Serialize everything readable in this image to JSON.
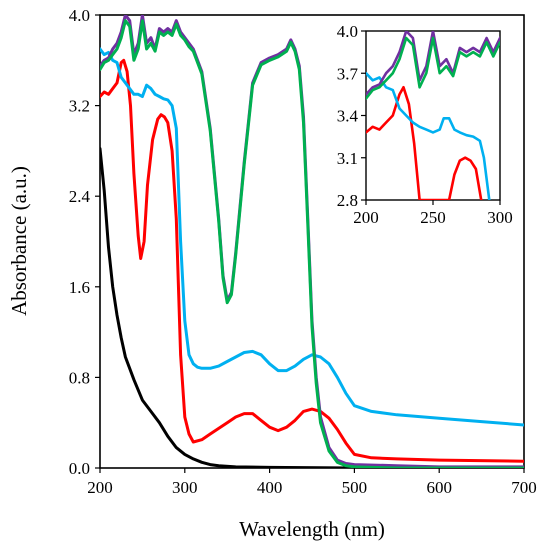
{
  "chart_data": [
    {
      "type": "line",
      "title": "",
      "xlabel": "Wavelength (nm)",
      "ylabel": "Absorbance (a.u.)",
      "xlim": [
        200,
        700
      ],
      "ylim": [
        0,
        4
      ],
      "xticks": [
        200,
        300,
        400,
        500,
        600,
        700
      ],
      "yticks": [
        0.0,
        0.8,
        1.6,
        2.4,
        3.2,
        4.0
      ],
      "xtick_labels": [
        "200",
        "300",
        "400",
        "500",
        "600",
        "700"
      ],
      "ytick_labels": [
        "0.0",
        "0.8",
        "1.6",
        "2.4",
        "3.2",
        "4.0"
      ],
      "grid": false,
      "legend": "none",
      "series": [
        {
          "color": "#000000",
          "x": [
            200,
            205,
            210,
            215,
            220,
            225,
            230,
            240,
            250,
            260,
            270,
            280,
            290,
            300,
            310,
            320,
            330,
            340,
            360,
            400,
            500,
            600,
            700
          ],
          "y": [
            2.82,
            2.45,
            1.95,
            1.6,
            1.35,
            1.15,
            0.98,
            0.78,
            0.6,
            0.5,
            0.4,
            0.28,
            0.18,
            0.12,
            0.08,
            0.05,
            0.03,
            0.02,
            0.01,
            0.005,
            0.0,
            0.0,
            0.0
          ]
        },
        {
          "color": "#ff0000",
          "x": [
            200,
            205,
            210,
            215,
            220,
            225,
            228,
            232,
            236,
            240,
            245,
            248,
            252,
            256,
            262,
            268,
            272,
            276,
            280,
            285,
            290,
            295,
            300,
            305,
            310,
            320,
            330,
            340,
            350,
            360,
            370,
            380,
            390,
            400,
            410,
            420,
            430,
            440,
            450,
            460,
            470,
            480,
            490,
            500,
            520,
            550,
            600,
            700
          ],
          "y": [
            3.28,
            3.32,
            3.3,
            3.35,
            3.4,
            3.58,
            3.6,
            3.5,
            3.2,
            2.6,
            2.05,
            1.85,
            2.0,
            2.5,
            2.9,
            3.08,
            3.12,
            3.1,
            3.05,
            2.8,
            2.2,
            1.0,
            0.45,
            0.3,
            0.23,
            0.25,
            0.3,
            0.35,
            0.4,
            0.45,
            0.48,
            0.48,
            0.42,
            0.36,
            0.33,
            0.36,
            0.42,
            0.5,
            0.52,
            0.5,
            0.44,
            0.34,
            0.22,
            0.12,
            0.09,
            0.08,
            0.07,
            0.06
          ]
        },
        {
          "color": "#00b0f0",
          "x": [
            200,
            205,
            210,
            215,
            220,
            225,
            230,
            235,
            240,
            245,
            250,
            255,
            260,
            265,
            270,
            275,
            280,
            285,
            290,
            295,
            300,
            305,
            310,
            315,
            320,
            330,
            340,
            350,
            360,
            370,
            380,
            390,
            400,
            410,
            420,
            430,
            440,
            450,
            460,
            470,
            480,
            490,
            500,
            520,
            550,
            600,
            650,
            700
          ],
          "y": [
            3.7,
            3.65,
            3.67,
            3.6,
            3.58,
            3.45,
            3.4,
            3.35,
            3.3,
            3.3,
            3.28,
            3.38,
            3.35,
            3.3,
            3.28,
            3.26,
            3.25,
            3.2,
            3.0,
            2.0,
            1.3,
            1.0,
            0.92,
            0.89,
            0.88,
            0.88,
            0.9,
            0.94,
            0.98,
            1.02,
            1.03,
            1.0,
            0.92,
            0.86,
            0.86,
            0.9,
            0.96,
            1.0,
            0.98,
            0.92,
            0.8,
            0.66,
            0.55,
            0.5,
            0.47,
            0.44,
            0.41,
            0.38
          ]
        },
        {
          "color": "#7030a0",
          "x": [
            200,
            205,
            210,
            215,
            220,
            225,
            230,
            235,
            240,
            245,
            250,
            255,
            260,
            265,
            270,
            275,
            280,
            285,
            290,
            295,
            300,
            305,
            310,
            320,
            330,
            340,
            345,
            350,
            355,
            360,
            370,
            380,
            390,
            400,
            410,
            420,
            425,
            430,
            435,
            440,
            445,
            450,
            455,
            460,
            470,
            480,
            490,
            500,
            550,
            600,
            700
          ],
          "y": [
            3.55,
            3.6,
            3.62,
            3.7,
            3.75,
            3.85,
            4.0,
            3.95,
            3.65,
            3.75,
            4.0,
            3.75,
            3.8,
            3.7,
            3.88,
            3.85,
            3.88,
            3.85,
            3.95,
            3.85,
            3.8,
            3.75,
            3.7,
            3.5,
            3.0,
            2.2,
            1.7,
            1.48,
            1.55,
            1.9,
            2.7,
            3.4,
            3.58,
            3.62,
            3.65,
            3.7,
            3.78,
            3.7,
            3.55,
            3.1,
            2.2,
            1.3,
            0.8,
            0.45,
            0.18,
            0.07,
            0.04,
            0.03,
            0.02,
            0.01,
            0.01
          ]
        },
        {
          "color": "#00b050",
          "x": [
            200,
            205,
            210,
            215,
            220,
            225,
            230,
            235,
            240,
            245,
            250,
            255,
            260,
            265,
            270,
            275,
            280,
            285,
            290,
            295,
            300,
            305,
            310,
            320,
            330,
            340,
            345,
            350,
            355,
            360,
            370,
            380,
            390,
            400,
            410,
            420,
            425,
            430,
            435,
            440,
            445,
            450,
            455,
            460,
            470,
            480,
            490,
            500,
            550,
            600,
            700
          ],
          "y": [
            3.52,
            3.58,
            3.6,
            3.65,
            3.7,
            3.8,
            3.95,
            3.9,
            3.6,
            3.7,
            3.95,
            3.7,
            3.75,
            3.68,
            3.85,
            3.82,
            3.85,
            3.82,
            3.92,
            3.82,
            3.78,
            3.72,
            3.68,
            3.48,
            2.98,
            2.18,
            1.68,
            1.46,
            1.53,
            1.88,
            2.68,
            3.38,
            3.56,
            3.6,
            3.63,
            3.68,
            3.76,
            3.68,
            3.52,
            3.05,
            2.15,
            1.25,
            0.75,
            0.4,
            0.15,
            0.05,
            0.02,
            0.01,
            0.0,
            0.0,
            0.0
          ]
        }
      ]
    },
    {
      "type": "line",
      "title": "",
      "xlabel": "",
      "ylabel": "",
      "xlim": [
        200,
        300
      ],
      "ylim": [
        2.8,
        4.0
      ],
      "xticks": [
        200,
        250,
        300
      ],
      "yticks": [
        2.8,
        3.1,
        3.4,
        3.7,
        4.0
      ],
      "xtick_labels": [
        "200",
        "250",
        "300"
      ],
      "ytick_labels": [
        "2.8",
        "3.1",
        "3.4",
        "3.7",
        "4.0"
      ],
      "grid": false,
      "legend": "none",
      "series": [
        {
          "color": "#ff0000",
          "x": [
            200,
            205,
            210,
            215,
            220,
            225,
            228,
            232,
            236,
            240,
            262,
            266,
            270,
            274,
            278,
            282,
            286
          ],
          "y": [
            3.28,
            3.32,
            3.3,
            3.35,
            3.4,
            3.55,
            3.6,
            3.48,
            3.2,
            2.8,
            2.8,
            2.98,
            3.08,
            3.1,
            3.08,
            3.02,
            2.8
          ]
        },
        {
          "color": "#00b0f0",
          "x": [
            200,
            205,
            210,
            215,
            220,
            225,
            230,
            235,
            240,
            245,
            250,
            255,
            258,
            262,
            266,
            270,
            275,
            280,
            285,
            288,
            292
          ],
          "y": [
            3.7,
            3.65,
            3.67,
            3.6,
            3.58,
            3.45,
            3.4,
            3.35,
            3.32,
            3.3,
            3.28,
            3.3,
            3.38,
            3.38,
            3.3,
            3.28,
            3.26,
            3.25,
            3.22,
            3.1,
            2.8
          ]
        },
        {
          "color": "#7030a0",
          "x": [
            200,
            205,
            210,
            215,
            220,
            225,
            230,
            235,
            240,
            245,
            250,
            255,
            260,
            265,
            270,
            275,
            280,
            285,
            290,
            295,
            300
          ],
          "y": [
            3.55,
            3.6,
            3.62,
            3.7,
            3.75,
            3.85,
            4.0,
            3.95,
            3.65,
            3.75,
            4.0,
            3.75,
            3.8,
            3.7,
            3.88,
            3.85,
            3.88,
            3.85,
            3.95,
            3.85,
            3.95
          ]
        },
        {
          "color": "#00b050",
          "x": [
            200,
            205,
            210,
            215,
            220,
            225,
            230,
            235,
            240,
            245,
            250,
            255,
            260,
            265,
            270,
            275,
            280,
            285,
            290,
            295,
            300
          ],
          "y": [
            3.52,
            3.58,
            3.6,
            3.65,
            3.7,
            3.8,
            3.95,
            3.9,
            3.6,
            3.7,
            3.95,
            3.7,
            3.75,
            3.68,
            3.85,
            3.82,
            3.85,
            3.82,
            3.92,
            3.82,
            3.92
          ]
        }
      ]
    }
  ]
}
